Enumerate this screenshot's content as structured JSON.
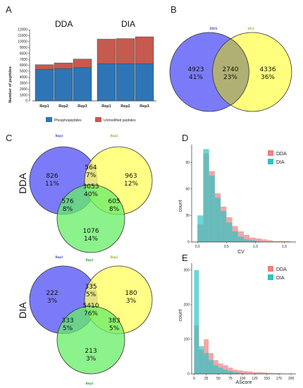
{
  "panels": {
    "A": "A",
    "B": "B",
    "C": "C",
    "D": "D",
    "E": "E"
  },
  "chart_data": [
    {
      "panel": "A",
      "type": "bar",
      "stacked": true,
      "ylabel": "Number of peptides",
      "ylim": [
        0,
        12000
      ],
      "yticks": [
        "0",
        "1000",
        "2000",
        "3000",
        "4000",
        "5000",
        "6000",
        "7000",
        "8000",
        "9000",
        "10000",
        "11000",
        "12000"
      ],
      "groups": [
        {
          "label": "DDA",
          "categories": [
            "Rep1",
            "Rep2",
            "Rep3"
          ],
          "series": [
            {
              "name": "Phosphopeptides",
              "values": [
                5300,
                5450,
                5600
              ]
            },
            {
              "name": "Unmodified peptides",
              "values": [
                800,
                950,
                1450
              ]
            }
          ]
        },
        {
          "label": "DIA",
          "categories": [
            "Rep1",
            "Rep2",
            "Rep3"
          ],
          "series": [
            {
              "name": "Phosphopeptides",
              "values": [
                6250,
                6250,
                6250
              ]
            },
            {
              "name": "Unmodified peptides",
              "values": [
                4150,
                4250,
                4550
              ]
            }
          ]
        }
      ],
      "colors": {
        "Phosphopeptides": "#2e75b6",
        "Unmodified peptides": "#c55a4e"
      },
      "legend": [
        "Phosphopeptides",
        "Unmodified peptides"
      ]
    },
    {
      "panel": "B",
      "type": "venn2",
      "sets": [
        {
          "name": "DDA",
          "color": "#3b3bd9"
        },
        {
          "name": "DIA",
          "color": "#a8a820"
        }
      ],
      "regions": [
        {
          "count": "4923",
          "pct": "41%"
        },
        {
          "count": "2740",
          "pct": "23%"
        },
        {
          "count": "4336",
          "pct": "36%"
        }
      ]
    },
    {
      "panel": "C-DDA",
      "type": "venn3",
      "side_label": "DDA",
      "sets": [
        {
          "name": "Rep1",
          "color": "#3b3bd9"
        },
        {
          "name": "Rep2",
          "color": "#a8a820"
        },
        {
          "name": "Rep3",
          "color": "#2e9a2e"
        }
      ],
      "regions": {
        "only1": {
          "count": "826",
          "pct": "11%"
        },
        "only2": {
          "count": "963",
          "pct": "12%"
        },
        "only3": {
          "count": "1076",
          "pct": "14%"
        },
        "r12": {
          "count": "564",
          "pct": "7%"
        },
        "r13": {
          "count": "576",
          "pct": "8%"
        },
        "r23": {
          "count": "605",
          "pct": "8%"
        },
        "r123": {
          "count": "3053",
          "pct": "40%"
        }
      }
    },
    {
      "panel": "C-DIA",
      "type": "venn3",
      "side_label": "DIA",
      "sets": [
        {
          "name": "Rep1",
          "color": "#3b3bd9"
        },
        {
          "name": "Rep2",
          "color": "#a8a820"
        },
        {
          "name": "Rep3",
          "color": "#2e9a2e"
        }
      ],
      "regions": {
        "only1": {
          "count": "222",
          "pct": "3%"
        },
        "only2": {
          "count": "180",
          "pct": "3%"
        },
        "only3": {
          "count": "213",
          "pct": "3%"
        },
        "r12": {
          "count": "335",
          "pct": "5%"
        },
        "r13": {
          "count": "333",
          "pct": "5%"
        },
        "r23": {
          "count": "383",
          "pct": "5%"
        },
        "r123": {
          "count": "5410",
          "pct": "76%"
        }
      }
    },
    {
      "panel": "D",
      "type": "histogram",
      "xlabel": "CV",
      "ylabel": "count",
      "xlim": [
        -0.1,
        1.7
      ],
      "ylim": [
        0,
        110
      ],
      "xticks": [
        "0.0",
        "0.5",
        "1.0",
        "1.5"
      ],
      "yticks": [
        "0",
        "30",
        "60",
        "90"
      ],
      "series": [
        {
          "name": "DDA",
          "color": "#f08080",
          "x": [
            0.05,
            0.15,
            0.25,
            0.35,
            0.45,
            0.55,
            0.65,
            0.75,
            0.85,
            0.95,
            1.05,
            1.15,
            1.25,
            1.35,
            1.45,
            1.55
          ],
          "counts": [
            20,
            100,
            80,
            55,
            40,
            28,
            18,
            12,
            8,
            5,
            4,
            3,
            2,
            1,
            1,
            1
          ]
        },
        {
          "name": "DIA",
          "color": "#2ec4c4",
          "x": [
            0.05,
            0.15,
            0.25,
            0.35,
            0.45,
            0.55,
            0.65,
            0.75,
            0.85,
            0.95,
            1.05,
            1.15,
            1.25,
            1.35,
            1.45,
            1.55
          ],
          "counts": [
            30,
            105,
            75,
            50,
            35,
            22,
            12,
            6,
            3,
            2,
            1,
            0,
            0,
            0,
            0,
            0
          ]
        }
      ],
      "legend": [
        "DDA",
        "DIA"
      ]
    },
    {
      "panel": "E",
      "type": "histogram",
      "xlabel": "AScore",
      "ylabel": "count",
      "xlim": [
        -5,
        210
      ],
      "ylim": [
        0,
        320
      ],
      "xticks": [
        "0",
        "25",
        "50",
        "75",
        "100",
        "125",
        "150",
        "175",
        "200"
      ],
      "yticks": [
        "0",
        "100",
        "200",
        "300"
      ],
      "series": [
        {
          "name": "DDA",
          "color": "#f08080",
          "x": [
            5,
            15,
            25,
            35,
            45,
            55,
            65,
            75,
            85,
            95,
            105,
            115,
            125,
            135,
            145,
            155,
            165,
            175,
            185,
            195
          ],
          "counts": [
            140,
            70,
            100,
            60,
            40,
            30,
            25,
            18,
            12,
            10,
            8,
            7,
            5,
            5,
            4,
            3,
            2,
            2,
            1,
            1
          ]
        },
        {
          "name": "DIA",
          "color": "#2ec4c4",
          "x": [
            5,
            15,
            25,
            35,
            45,
            55,
            65,
            75,
            85,
            95,
            105,
            115,
            125,
            135,
            145,
            155,
            165,
            175,
            185,
            195
          ],
          "counts": [
            300,
            80,
            60,
            40,
            25,
            18,
            12,
            8,
            5,
            3,
            2,
            1,
            1,
            0,
            0,
            0,
            0,
            0,
            0,
            0
          ]
        }
      ],
      "legend": [
        "DDA",
        "DIA"
      ]
    }
  ]
}
